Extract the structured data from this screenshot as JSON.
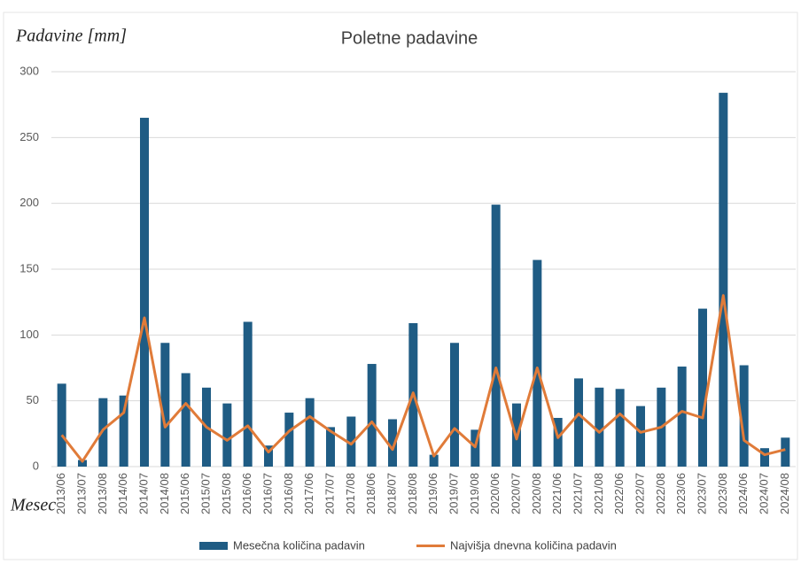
{
  "chart_data": {
    "type": "bar_line",
    "title": "Poletne padavine",
    "y_label": "Padavine [mm]",
    "x_label": "Mesec",
    "categories": [
      "2013/06",
      "2013/07",
      "2013/08",
      "2014/06",
      "2014/07",
      "2014/08",
      "2015/06",
      "2015/07",
      "2015/08",
      "2016/06",
      "2016/07",
      "2016/08",
      "2017/06",
      "2017/07",
      "2017/08",
      "2018/06",
      "2018/07",
      "2018/08",
      "2019/06",
      "2019/07",
      "2019/08",
      "2020/06",
      "2020/07",
      "2020/08",
      "2021/06",
      "2021/07",
      "2021/08",
      "2022/06",
      "2022/07",
      "2022/08",
      "2023/06",
      "2023/07",
      "2023/08",
      "2024/06",
      "2024/07",
      "2024/08"
    ],
    "series": [
      {
        "name": "Mesečna količina padavin",
        "type": "bar",
        "color": "#1f5c84",
        "values": [
          63,
          5,
          52,
          54,
          265,
          94,
          71,
          60,
          48,
          110,
          16,
          41,
          52,
          30,
          38,
          78,
          36,
          109,
          9,
          94,
          28,
          199,
          48,
          157,
          37,
          67,
          60,
          59,
          46,
          60,
          76,
          120,
          284,
          77,
          14,
          22
        ]
      },
      {
        "name": "Najvišja dnevna količina padavin",
        "type": "line",
        "color": "#e07b39",
        "values": [
          24,
          4,
          28,
          41,
          113,
          30,
          48,
          30,
          20,
          31,
          11,
          27,
          38,
          27,
          17,
          34,
          13,
          56,
          8,
          29,
          15,
          75,
          21,
          75,
          22,
          40,
          26,
          40,
          26,
          30,
          42,
          37,
          130,
          20,
          9,
          13
        ]
      }
    ],
    "ylim": [
      0,
      300
    ],
    "yticks": [
      0,
      50,
      100,
      150,
      200,
      250,
      300
    ],
    "grid": true,
    "legend": "bottom"
  }
}
